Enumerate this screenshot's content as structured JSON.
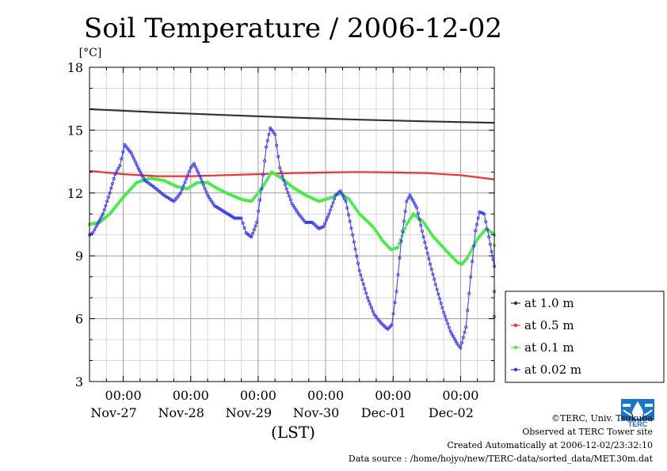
{
  "chart_data": {
    "type": "line",
    "title": "Soil Temperature / 2006-12-02",
    "yunit": "[°C]",
    "xlabel": "(LST)",
    "ylim": [
      3,
      18
    ],
    "yticks": [
      3,
      6,
      9,
      12,
      15,
      18
    ],
    "xlim": [
      0,
      6
    ],
    "x_units": "days since Nov-26 12:00 LST",
    "xticks": [
      {
        "x": 0.5,
        "time": "00:00",
        "date": "Nov-27"
      },
      {
        "x": 1.5,
        "time": "00:00",
        "date": "Nov-28"
      },
      {
        "x": 2.5,
        "time": "00:00",
        "date": "Nov-29"
      },
      {
        "x": 3.5,
        "time": "00:00",
        "date": "Nov-30"
      },
      {
        "x": 4.5,
        "time": "00:00",
        "date": "Dec-01"
      },
      {
        "x": 5.5,
        "time": "00:00",
        "date": "Dec-02"
      }
    ],
    "grid": true,
    "legend_position": "bottom-right",
    "series": [
      {
        "name": "at 1.0 m",
        "color": "#333333",
        "markers": false,
        "points": [
          [
            0,
            16.0
          ],
          [
            1,
            15.85
          ],
          [
            2,
            15.72
          ],
          [
            3,
            15.6
          ],
          [
            4,
            15.5
          ],
          [
            5,
            15.42
          ],
          [
            6,
            15.35
          ]
        ]
      },
      {
        "name": "at 0.5 m",
        "color": "#ff2a2a",
        "markers": false,
        "points": [
          [
            0,
            13.05
          ],
          [
            0.5,
            12.9
          ],
          [
            1,
            12.8
          ],
          [
            1.5,
            12.8
          ],
          [
            2,
            12.85
          ],
          [
            2.5,
            12.9
          ],
          [
            3,
            12.95
          ],
          [
            3.5,
            12.98
          ],
          [
            4,
            13.0
          ],
          [
            4.5,
            12.98
          ],
          [
            5,
            12.95
          ],
          [
            5.5,
            12.85
          ],
          [
            6,
            12.65
          ]
        ]
      },
      {
        "name": "at 0.1 m",
        "color": "#44ee44",
        "markers": true,
        "points": [
          [
            0,
            10.5
          ],
          [
            0.15,
            10.6
          ],
          [
            0.3,
            11.0
          ],
          [
            0.5,
            11.8
          ],
          [
            0.7,
            12.5
          ],
          [
            0.9,
            12.7
          ],
          [
            1.1,
            12.6
          ],
          [
            1.3,
            12.3
          ],
          [
            1.45,
            12.2
          ],
          [
            1.6,
            12.5
          ],
          [
            1.75,
            12.5
          ],
          [
            1.9,
            12.2
          ],
          [
            2.1,
            11.9
          ],
          [
            2.25,
            11.7
          ],
          [
            2.4,
            11.6
          ],
          [
            2.55,
            12.2
          ],
          [
            2.7,
            13.0
          ],
          [
            2.85,
            12.7
          ],
          [
            3.0,
            12.3
          ],
          [
            3.2,
            11.9
          ],
          [
            3.4,
            11.6
          ],
          [
            3.6,
            11.8
          ],
          [
            3.72,
            12.0
          ],
          [
            3.85,
            11.7
          ],
          [
            4.0,
            11.0
          ],
          [
            4.2,
            10.4
          ],
          [
            4.35,
            9.7
          ],
          [
            4.47,
            9.3
          ],
          [
            4.57,
            9.4
          ],
          [
            4.7,
            10.5
          ],
          [
            4.8,
            11.0
          ],
          [
            4.95,
            10.6
          ],
          [
            5.1,
            9.9
          ],
          [
            5.3,
            9.2
          ],
          [
            5.45,
            8.7
          ],
          [
            5.52,
            8.6
          ],
          [
            5.6,
            8.9
          ],
          [
            5.75,
            9.8
          ],
          [
            5.88,
            10.3
          ],
          [
            6.0,
            10.0
          ],
          [
            6.0,
            9.5
          ]
        ]
      },
      {
        "name": "at 0.02 m",
        "color": "#3333ff",
        "markers": true,
        "points": [
          [
            0,
            10.0
          ],
          [
            0.05,
            10.1
          ],
          [
            0.1,
            10.4
          ],
          [
            0.2,
            11.0
          ],
          [
            0.3,
            12.0
          ],
          [
            0.38,
            12.9
          ],
          [
            0.45,
            13.3
          ],
          [
            0.52,
            14.3
          ],
          [
            0.62,
            13.9
          ],
          [
            0.72,
            13.2
          ],
          [
            0.82,
            12.6
          ],
          [
            0.95,
            12.3
          ],
          [
            1.1,
            11.9
          ],
          [
            1.25,
            11.6
          ],
          [
            1.35,
            12.0
          ],
          [
            1.5,
            13.2
          ],
          [
            1.55,
            13.4
          ],
          [
            1.65,
            12.7
          ],
          [
            1.75,
            11.9
          ],
          [
            1.85,
            11.4
          ],
          [
            1.95,
            11.2
          ],
          [
            2.05,
            11.0
          ],
          [
            2.15,
            10.8
          ],
          [
            2.25,
            10.8
          ],
          [
            2.32,
            10.1
          ],
          [
            2.4,
            9.9
          ],
          [
            2.48,
            10.6
          ],
          [
            2.55,
            12.2
          ],
          [
            2.62,
            14.2
          ],
          [
            2.68,
            15.1
          ],
          [
            2.75,
            14.8
          ],
          [
            2.82,
            13.2
          ],
          [
            2.92,
            12.2
          ],
          [
            3.0,
            11.5
          ],
          [
            3.1,
            11.0
          ],
          [
            3.2,
            10.6
          ],
          [
            3.3,
            10.6
          ],
          [
            3.4,
            10.3
          ],
          [
            3.47,
            10.4
          ],
          [
            3.55,
            11.0
          ],
          [
            3.65,
            11.9
          ],
          [
            3.72,
            12.1
          ],
          [
            3.8,
            11.6
          ],
          [
            3.9,
            10.0
          ],
          [
            4.0,
            8.3
          ],
          [
            4.12,
            7.0
          ],
          [
            4.22,
            6.2
          ],
          [
            4.32,
            5.8
          ],
          [
            4.42,
            5.5
          ],
          [
            4.48,
            5.7
          ],
          [
            4.55,
            7.3
          ],
          [
            4.62,
            9.7
          ],
          [
            4.7,
            11.6
          ],
          [
            4.75,
            11.9
          ],
          [
            4.85,
            11.3
          ],
          [
            4.95,
            9.9
          ],
          [
            5.05,
            8.6
          ],
          [
            5.15,
            7.4
          ],
          [
            5.25,
            6.3
          ],
          [
            5.35,
            5.4
          ],
          [
            5.45,
            4.8
          ],
          [
            5.5,
            4.6
          ],
          [
            5.58,
            5.6
          ],
          [
            5.65,
            8.0
          ],
          [
            5.72,
            10.2
          ],
          [
            5.78,
            11.1
          ],
          [
            5.85,
            11.0
          ],
          [
            5.92,
            9.9
          ],
          [
            6.0,
            8.5
          ],
          [
            6.05,
            7.3
          ],
          [
            6.0,
            6.1
          ]
        ]
      }
    ]
  },
  "footer": {
    "copyright": "©TERC, Univ. Tsukuba",
    "site": "Observed at TERC Tower site",
    "created": "Created Automatically at 2006-12-02/23:32:10",
    "source": "Data source : /home/hojyo/new/TERC-data/sorted_data/MET.30m.dat"
  },
  "logo": {
    "text": "TERC",
    "color": "#1a75c9"
  }
}
